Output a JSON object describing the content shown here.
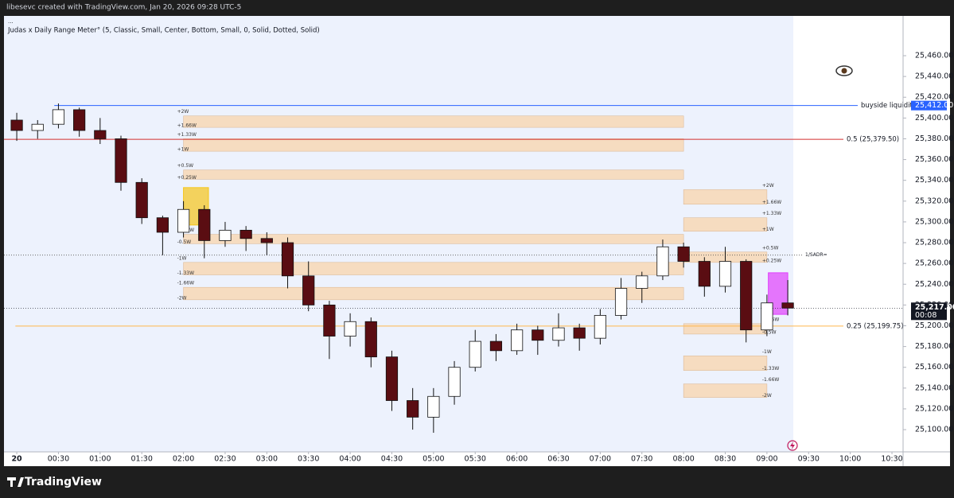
{
  "header": {
    "credit": "libesevc created with TradingView.com, Jan 20, 2026 09:28 UTC-5",
    "indicator": "Judas x Daily Range Meter° (5, Classic, Small, Center, Bottom, Small, 0, Solid, Dotted, Solid)"
  },
  "footer": {
    "brand": "TradingView"
  },
  "chart_data": {
    "type": "candlestick",
    "x": [
      0,
      15,
      30,
      45,
      60,
      75,
      90,
      105,
      120,
      135,
      150,
      165,
      180,
      195,
      210,
      225,
      240,
      255,
      270,
      285,
      300,
      315,
      330,
      345,
      360,
      375,
      390,
      405,
      420,
      435,
      450,
      465,
      480,
      495,
      510,
      525,
      540,
      555
    ],
    "open": [
      25398,
      25388,
      25394,
      25408,
      25388,
      25380,
      25338,
      25304,
      25290,
      25312,
      25282,
      25292,
      25284,
      25280,
      25248,
      25220,
      25190,
      25204,
      25170,
      25128,
      25112,
      25132,
      25160,
      25185,
      25176,
      25196,
      25186,
      25198,
      25188,
      25210,
      25236,
      25248,
      25276,
      25262,
      25238,
      25262,
      25196,
      25222
    ],
    "high": [
      25405,
      25398,
      25414,
      25410,
      25400,
      25383,
      25342,
      25306,
      25320,
      25316,
      25300,
      25296,
      25290,
      25285,
      25262,
      25224,
      25212,
      25208,
      25176,
      25140,
      25140,
      25166,
      25196,
      25192,
      25202,
      25200,
      25212,
      25202,
      25216,
      25246,
      25252,
      25283,
      25280,
      25266,
      25276,
      25264,
      25230,
      25244
    ],
    "low": [
      25378,
      25380,
      25390,
      25382,
      25375,
      25330,
      25298,
      25268,
      25285,
      25265,
      25276,
      25272,
      25268,
      25236,
      25214,
      25168,
      25180,
      25160,
      25118,
      25100,
      25097,
      25124,
      25156,
      25166,
      25172,
      25172,
      25180,
      25176,
      25182,
      25206,
      25222,
      25244,
      25256,
      25228,
      25232,
      25184,
      25190,
      25210
    ],
    "close": [
      25388,
      25394,
      25408,
      25388,
      25380,
      25338,
      25304,
      25290,
      25312,
      25282,
      25292,
      25284,
      25280,
      25248,
      25220,
      25190,
      25204,
      25170,
      25128,
      25112,
      25132,
      25160,
      25185,
      25176,
      25196,
      25186,
      25198,
      25188,
      25210,
      25236,
      25248,
      25276,
      25262,
      25238,
      25262,
      25196,
      25222,
      25217
    ],
    "up_color": "#ffffff",
    "down_color": "#5a0d12",
    "wick_color": "#111111",
    "xlim": [
      -9.2,
      638
    ],
    "ylim": [
      25078.6,
      25498.3
    ],
    "session_shading": {
      "x_range": [
        -9.2,
        559
      ],
      "color": "#edf2fd"
    },
    "xticks": [
      {
        "value": 0,
        "label": "20"
      },
      {
        "value": 30,
        "label": "00:30"
      },
      {
        "value": 60,
        "label": "01:00"
      },
      {
        "value": 90,
        "label": "01:30"
      },
      {
        "value": 120,
        "label": "02:00"
      },
      {
        "value": 150,
        "label": "02:30"
      },
      {
        "value": 180,
        "label": "03:00"
      },
      {
        "value": 210,
        "label": "03:30"
      },
      {
        "value": 240,
        "label": "04:00"
      },
      {
        "value": 270,
        "label": "04:30"
      },
      {
        "value": 300,
        "label": "05:00"
      },
      {
        "value": 330,
        "label": "05:30"
      },
      {
        "value": 360,
        "label": "06:00"
      },
      {
        "value": 390,
        "label": "06:30"
      },
      {
        "value": 420,
        "label": "07:00"
      },
      {
        "value": 450,
        "label": "07:30"
      },
      {
        "value": 480,
        "label": "08:00"
      },
      {
        "value": 510,
        "label": "08:30"
      },
      {
        "value": 540,
        "label": "09:00"
      },
      {
        "value": 570,
        "label": "09:30"
      },
      {
        "value": 600,
        "label": "10:00"
      },
      {
        "value": 630,
        "label": "10:30"
      }
    ],
    "yticks": [
      {
        "value": 25100,
        "label": "25,100.00"
      },
      {
        "value": 25120,
        "label": "25,120.00"
      },
      {
        "value": 25140,
        "label": "25,140.00"
      },
      {
        "value": 25160,
        "label": "25,160.00"
      },
      {
        "value": 25180,
        "label": "25,180.00"
      },
      {
        "value": 25200,
        "label": "25,200.00"
      },
      {
        "value": 25220,
        "label": "25,220.00"
      },
      {
        "value": 25240,
        "label": "25,240.00"
      },
      {
        "value": 25260,
        "label": "25,260.00"
      },
      {
        "value": 25280,
        "label": "25,280.00"
      },
      {
        "value": 25300,
        "label": "25,300.00"
      },
      {
        "value": 25320,
        "label": "25,320.00"
      },
      {
        "value": 25340,
        "label": "25,340.00"
      },
      {
        "value": 25360,
        "label": "25,360.00"
      },
      {
        "value": 25380,
        "label": "25,380.00"
      },
      {
        "value": 25400,
        "label": "25,400.00"
      },
      {
        "value": 25420,
        "label": "25,420.00"
      },
      {
        "value": 25440,
        "label": "25,440.00"
      },
      {
        "value": 25460,
        "label": "25,460.00"
      }
    ],
    "levels": [
      {
        "value": 25412,
        "start": 27,
        "label": "buyside liquidity",
        "price_label": "25,412.00",
        "color": "#2962ff",
        "style": "solid"
      },
      {
        "value": 25379.5,
        "start": -9.2,
        "label": "0.5 (25,379.50)",
        "color": "#d32f2f",
        "style": "solid"
      },
      {
        "value": 25199.75,
        "start": -1,
        "label": "0.25 (25,199.75)",
        "color": "#ffb74d",
        "style": "solid"
      },
      {
        "value": 25268,
        "start": -9.2,
        "label": "1/SADR=",
        "color": "#555555",
        "style": "dotted"
      }
    ],
    "zone_groups": [
      {
        "start": 120,
        "end": 480,
        "label_side": "left",
        "zones": [
          {
            "top": 25402,
            "bottom": 25391,
            "upper_label": "+2W",
            "lower_label": "+1.66W"
          },
          {
            "top": 25380,
            "bottom": 25368,
            "upper_label": "+1.33W",
            "lower_label": "+1W"
          },
          {
            "top": 25350,
            "bottom": 25341,
            "upper_label": "+0.5W",
            "lower_label": "+0.25W"
          },
          {
            "top": 25288,
            "bottom": 25279,
            "upper_label": "-0.25W",
            "lower_label": "-0.5W"
          },
          {
            "top": 25261,
            "bottom": 25249,
            "upper_label": "-1W",
            "lower_label": "-1.33W"
          },
          {
            "top": 25237,
            "bottom": 25225,
            "upper_label": "-1.66W",
            "lower_label": "-2W"
          }
        ]
      },
      {
        "start": 480,
        "end": 540,
        "label_side": "right",
        "zones": [
          {
            "top": 25331,
            "bottom": 25317,
            "upper_label": "+2W",
            "lower_label": "+1.66W"
          },
          {
            "top": 25304,
            "bottom": 25291,
            "upper_label": "+1.33W",
            "lower_label": "+1W"
          },
          {
            "top": 25271,
            "bottom": 25261,
            "upper_label": "+0.5W",
            "lower_label": "+0.25W"
          },
          {
            "top": 25202,
            "bottom": 25192,
            "upper_label": "-0.25W",
            "lower_label": "-0.5W"
          },
          {
            "top": 25171,
            "bottom": 25157,
            "upper_label": "-1W",
            "lower_label": "-1.33W"
          },
          {
            "top": 25144,
            "bottom": 25131,
            "upper_label": "-1.66W",
            "lower_label": "-2W"
          }
        ]
      }
    ],
    "zone_color": "#f6dcc0",
    "highlight_boxes": [
      {
        "x": [
          120,
          138
        ],
        "y": [
          25297,
          25333
        ],
        "color": "#f5c518"
      },
      {
        "x": [
          541,
          555
        ],
        "y": [
          25211,
          25251
        ],
        "color": "#e040fb"
      }
    ],
    "last_price": {
      "value": 25217,
      "label": "25,217.00",
      "countdown": "00:08"
    }
  }
}
